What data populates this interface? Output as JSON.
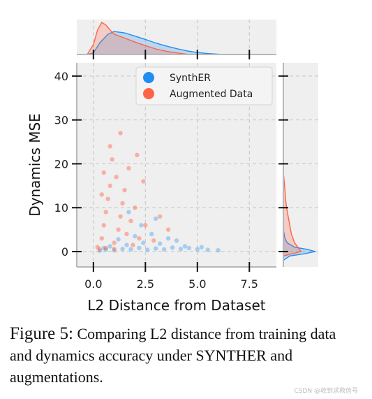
{
  "chart_data": {
    "type": "scatter",
    "subtype": "joint-plot-with-marginal-kde",
    "xlabel": "L2 Distance from Dataset",
    "ylabel": "Dynamics MSE",
    "xlim": [
      -0.8,
      8.8
    ],
    "ylim": [
      -3.5,
      43
    ],
    "x_ticks": [
      0.0,
      2.5,
      5.0,
      7.5
    ],
    "x_tick_labels": [
      "0.0",
      "2.5",
      "5.0",
      "7.5"
    ],
    "y_ticks": [
      0,
      10,
      20,
      30,
      40
    ],
    "y_tick_labels": [
      "0",
      "10",
      "20",
      "30",
      "40"
    ],
    "grid": true,
    "legend_position": "top-right",
    "series": [
      {
        "name": "SynthER",
        "color": "#1f8ef1",
        "points": [
          [
            0.3,
            0.2
          ],
          [
            0.6,
            0.4
          ],
          [
            1.0,
            0.3
          ],
          [
            1.4,
            0.6
          ],
          [
            1.8,
            0.5
          ],
          [
            2.2,
            0.8
          ],
          [
            2.6,
            0.4
          ],
          [
            3.0,
            0.7
          ],
          [
            3.4,
            0.5
          ],
          [
            3.8,
            0.9
          ],
          [
            4.2,
            0.6
          ],
          [
            4.6,
            0.8
          ],
          [
            5.0,
            0.5
          ],
          [
            5.5,
            0.4
          ],
          [
            6.0,
            0.3
          ],
          [
            0.8,
            1.2
          ],
          [
            1.6,
            1.5
          ],
          [
            2.4,
            2.0
          ],
          [
            3.2,
            1.8
          ],
          [
            4.0,
            2.5
          ],
          [
            2.0,
            3.5
          ],
          [
            2.8,
            4.0
          ],
          [
            3.6,
            3.0
          ],
          [
            1.2,
            2.8
          ],
          [
            2.3,
            6.0
          ],
          [
            3.0,
            7.5
          ],
          [
            1.7,
            9.0
          ],
          [
            4.4,
            1.2
          ],
          [
            5.2,
            1.0
          ],
          [
            0.5,
            0.8
          ]
        ],
        "marginal_x_kde": [
          [
            -0.3,
            0
          ],
          [
            0.0,
            0.05
          ],
          [
            0.3,
            0.35
          ],
          [
            0.7,
            0.62
          ],
          [
            1.0,
            0.7
          ],
          [
            1.5,
            0.66
          ],
          [
            2.0,
            0.56
          ],
          [
            2.5,
            0.46
          ],
          [
            3.0,
            0.35
          ],
          [
            3.5,
            0.26
          ],
          [
            4.0,
            0.18
          ],
          [
            4.5,
            0.11
          ],
          [
            5.0,
            0.06
          ],
          [
            5.5,
            0.03
          ],
          [
            6.2,
            0.0
          ]
        ],
        "marginal_y_kde": [
          [
            -2,
            0
          ],
          [
            -1,
            0.2
          ],
          [
            -0.5,
            0.65
          ],
          [
            0,
            1.0
          ],
          [
            0.5,
            0.75
          ],
          [
            1,
            0.35
          ],
          [
            2,
            0.12
          ],
          [
            3,
            0.05
          ],
          [
            5,
            0.0
          ]
        ]
      },
      {
        "name": "Augmented Data",
        "color": "#ff6347",
        "points": [
          [
            0.2,
            1.0
          ],
          [
            0.4,
            3.0
          ],
          [
            0.5,
            6.0
          ],
          [
            0.6,
            9.0
          ],
          [
            0.7,
            12.0
          ],
          [
            0.8,
            15.0
          ],
          [
            0.5,
            18.0
          ],
          [
            0.9,
            21.0
          ],
          [
            1.0,
            2.0
          ],
          [
            1.2,
            5.0
          ],
          [
            1.3,
            8.0
          ],
          [
            1.4,
            11.0
          ],
          [
            1.5,
            14.0
          ],
          [
            1.1,
            17.0
          ],
          [
            1.6,
            4.0
          ],
          [
            1.8,
            7.0
          ],
          [
            2.0,
            10.0
          ],
          [
            2.2,
            3.0
          ],
          [
            2.5,
            6.0
          ],
          [
            0.3,
            0.5
          ],
          [
            0.6,
            0.8
          ],
          [
            1.0,
            0.6
          ],
          [
            0.8,
            24.0
          ],
          [
            1.3,
            27.0
          ],
          [
            2.4,
            16.0
          ],
          [
            2.9,
            2.5
          ],
          [
            3.2,
            8.0
          ],
          [
            0.4,
            13.0
          ],
          [
            1.7,
            19.0
          ],
          [
            2.1,
            22.0
          ],
          [
            3.6,
            5.0
          ],
          [
            1.9,
            1.5
          ]
        ],
        "marginal_x_kde": [
          [
            -0.3,
            0
          ],
          [
            0.0,
            0.3
          ],
          [
            0.2,
            0.75
          ],
          [
            0.4,
            0.98
          ],
          [
            0.6,
            0.9
          ],
          [
            0.8,
            0.75
          ],
          [
            1.0,
            0.62
          ],
          [
            1.5,
            0.5
          ],
          [
            2.0,
            0.38
          ],
          [
            2.5,
            0.27
          ],
          [
            3.0,
            0.17
          ],
          [
            3.5,
            0.1
          ],
          [
            4.0,
            0.05
          ],
          [
            4.6,
            0.0
          ]
        ],
        "marginal_y_kde": [
          [
            -1,
            0
          ],
          [
            0,
            0.55
          ],
          [
            1,
            0.45
          ],
          [
            2,
            0.35
          ],
          [
            4,
            0.25
          ],
          [
            6,
            0.2
          ],
          [
            8,
            0.15
          ],
          [
            10,
            0.1
          ],
          [
            12,
            0.07
          ],
          [
            15,
            0.04
          ],
          [
            18,
            0.0
          ]
        ]
      }
    ]
  },
  "caption": {
    "figure_label": "Figure 5:",
    "text_1": " Comparing L2 distance from training data and dynamics accuracy under ",
    "synther_S": "S",
    "synther_rest": "YNTH",
    "synther_ER": "ER",
    "text_2": " and augmentations."
  },
  "watermark": "CSDN @收到求救信号"
}
